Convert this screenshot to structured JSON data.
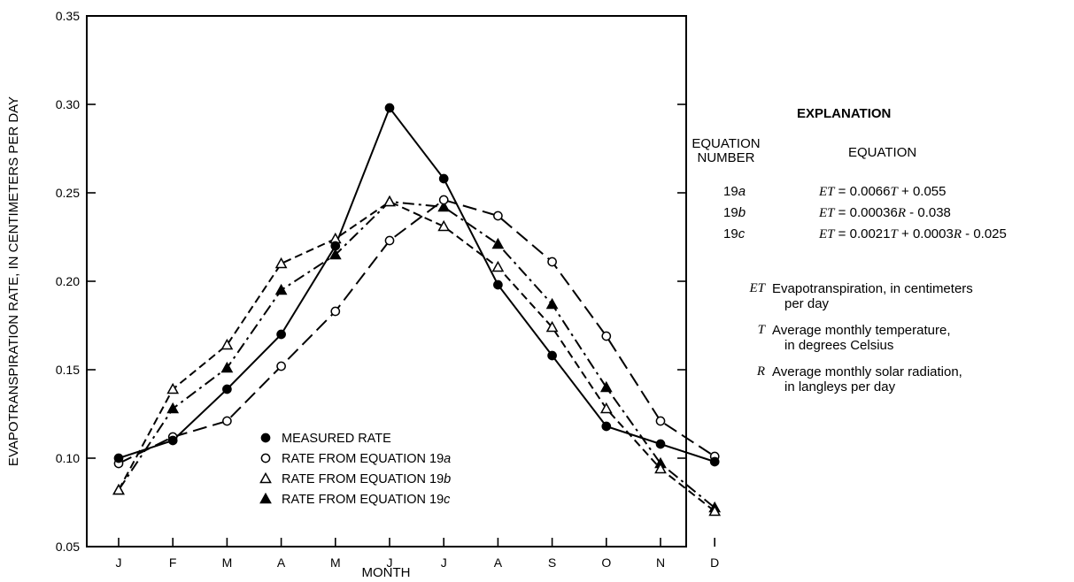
{
  "chart_data": {
    "type": "line",
    "xlabel": "MONTH",
    "ylabel": "EVAPOTRANSPIRATION RATE, IN CENTIMETERS PER DAY",
    "categories": [
      "J",
      "F",
      "M",
      "A",
      "M",
      "J",
      "J",
      "A",
      "S",
      "O",
      "N",
      "D"
    ],
    "ylim": [
      0.05,
      0.35
    ],
    "yticks": [
      "0.05",
      "0.10",
      "0.15",
      "0.20",
      "0.25",
      "0.30",
      "0.35"
    ],
    "grid": false,
    "legend_position": "bottom-center",
    "series": [
      {
        "name": "MEASURED RATE",
        "marker": "filled-circle",
        "line": "solid",
        "values": [
          0.1,
          0.11,
          0.139,
          0.17,
          0.22,
          0.298,
          0.258,
          0.198,
          0.158,
          0.118,
          0.108,
          0.098
        ]
      },
      {
        "name": "RATE FROM EQUATION 19a",
        "marker": "open-circle",
        "line": "long-dash",
        "values": [
          0.097,
          0.112,
          0.121,
          0.152,
          0.183,
          0.223,
          0.246,
          0.237,
          0.211,
          0.169,
          0.121,
          0.101
        ]
      },
      {
        "name": "RATE FROM EQUATION 19b",
        "marker": "open-triangle",
        "line": "short-dash",
        "values": [
          0.082,
          0.139,
          0.164,
          0.21,
          0.224,
          0.245,
          0.231,
          0.208,
          0.174,
          0.128,
          0.094,
          0.07
        ]
      },
      {
        "name": "RATE FROM EQUATION 19c",
        "marker": "filled-triangle",
        "line": "dash-dot",
        "values": [
          0.082,
          0.128,
          0.151,
          0.195,
          0.215,
          0.245,
          0.242,
          0.221,
          0.187,
          0.14,
          0.097,
          0.072
        ]
      }
    ]
  },
  "explanation": {
    "title": "EXPLANATION",
    "number_header_1": "EQUATION",
    "number_header_2": "NUMBER",
    "equation_header": "EQUATION",
    "equations": [
      {
        "num": "19",
        "suffix": "a",
        "expr_sym": "ET",
        "expr": " = 0.0066",
        "expr_mid": [
          {
            "t": "T",
            "sym": true
          },
          {
            "t": " + 0.055",
            "sym": false
          }
        ]
      },
      {
        "num": "19",
        "suffix": "b",
        "expr_sym": "ET",
        "expr": " = 0.00036",
        "expr_mid": [
          {
            "t": "R",
            "sym": true
          },
          {
            "t": " - 0.038",
            "sym": false
          }
        ]
      },
      {
        "num": "19",
        "suffix": "c",
        "expr_sym": "ET",
        "expr": " = 0.0021",
        "expr_mid": [
          {
            "t": "T",
            "sym": true
          },
          {
            "t": " + 0.0003",
            "sym": false
          },
          {
            "t": "R",
            "sym": true
          },
          {
            "t": " - 0.025",
            "sym": false
          }
        ]
      }
    ],
    "definitions": [
      {
        "symbol": "ET",
        "line1": "Evapotranspiration, in centimeters",
        "line2": "per day"
      },
      {
        "symbol": "T",
        "line1": "Average monthly temperature,",
        "line2": "in degrees Celsius"
      },
      {
        "symbol": "R",
        "line1": "Average monthly solar radiation,",
        "line2": "in langleys per day"
      }
    ]
  }
}
